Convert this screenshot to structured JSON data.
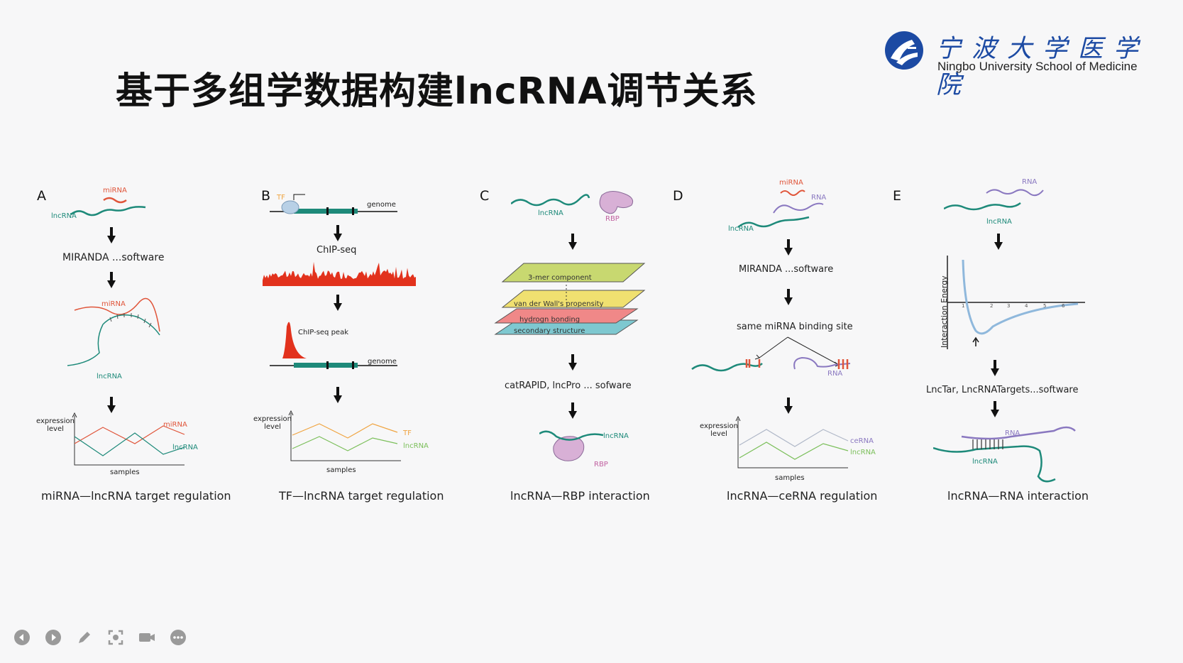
{
  "slide": {
    "title": "基于多组学数据构建lncRNA调节关系"
  },
  "logo": {
    "name_cn": "宁波大学医学院",
    "name_en": "Ningbo University School of Medicine"
  },
  "panels": [
    {
      "letter": "A",
      "labels": {
        "mirna": "miRNA",
        "lncrna": "lncRNA"
      },
      "step1": "MIRANDA ...software",
      "chart": {
        "ylabel": "expression level",
        "xlabel": "samples",
        "series1": "miRNA",
        "series2": "lncRNA"
      },
      "caption": "miRNA—lncRNA target regulation"
    },
    {
      "letter": "B",
      "labels": {
        "tf": "TF",
        "genome": "genome",
        "chipseq": "ChIP-seq",
        "peak": "ChIP-seq peak"
      },
      "chart": {
        "ylabel": "expression level",
        "xlabel": "samples",
        "series1": "TF",
        "series2": "lncRNA"
      },
      "caption": "TF—lncRNA target regulation"
    },
    {
      "letter": "C",
      "labels": {
        "lncrna": "lncRNA",
        "rbp": "RBP"
      },
      "layers": [
        "3-mer component",
        "van der Wall's propensity",
        "hydrogn bonding",
        "secondary structure"
      ],
      "step1": "catRAPID, lncPro ... sofware",
      "caption": "lncRNA—RBP interaction"
    },
    {
      "letter": "D",
      "labels": {
        "mirna": "miRNA",
        "rna": "RNA",
        "lncrna": "lncRNA"
      },
      "step1": "MIRANDA ...software",
      "step2": "same miRNA binding site",
      "chart": {
        "ylabel": "expression level",
        "xlabel": "samples",
        "series1": "ceRNA",
        "series2": "lncRNA"
      },
      "caption": "lncRNA—ceRNA  regulation"
    },
    {
      "letter": "E",
      "labels": {
        "rna": "RNA",
        "lncrna": "lncRNA"
      },
      "chart": {
        "ylabel": "Interaction Energy",
        "ticks": [
          "1",
          "2",
          "3",
          "4",
          "5",
          "6"
        ]
      },
      "step1": "LncTar, LncRNATargets...software",
      "caption": "lncRNA—RNA interaction"
    }
  ],
  "toolbar": {
    "buttons": [
      "previous-icon",
      "next-icon",
      "pen-icon",
      "screenshot-icon",
      "camera-icon",
      "more-icon"
    ]
  },
  "colors": {
    "mirna": "#e0553a",
    "lncrna": "#1e8a7a",
    "rna": "#8a78c0",
    "tf": "#f0a440",
    "chip": "#e2321d",
    "logo": "#1c4aa3"
  }
}
